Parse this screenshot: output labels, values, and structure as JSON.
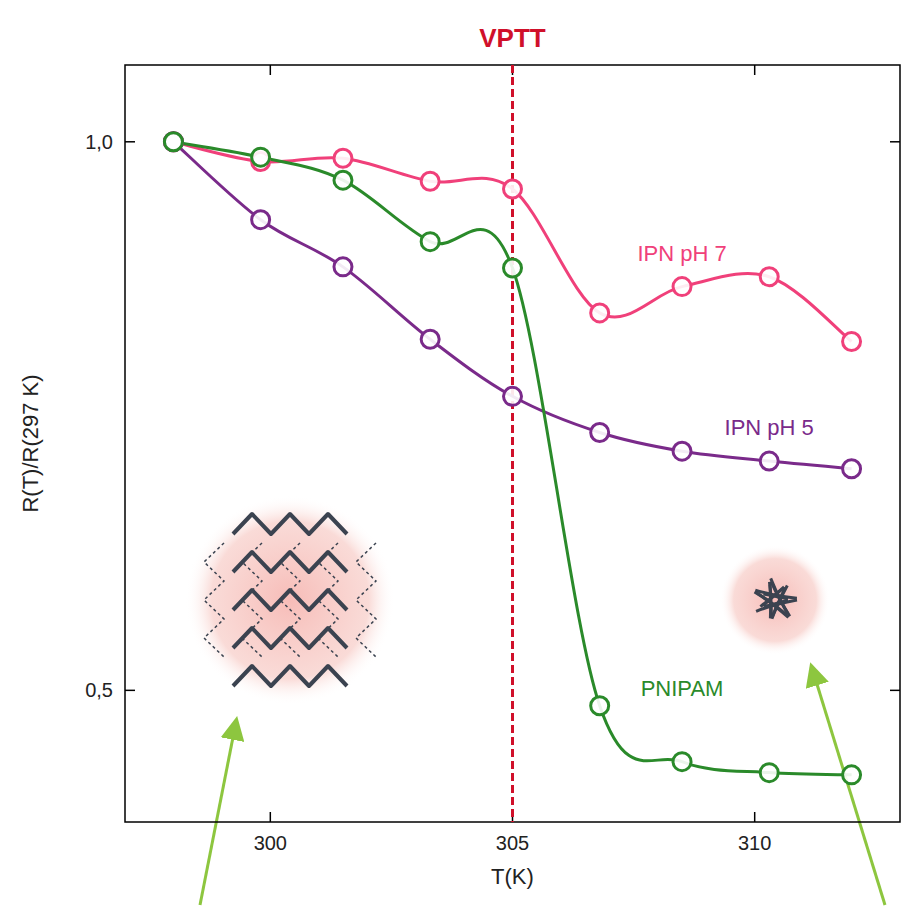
{
  "chart_data": {
    "type": "line",
    "x_label": "T(K)",
    "y_label": "R(T)/R(297 K)",
    "x": [
      298,
      299.8,
      301.5,
      303.3,
      305,
      306.8,
      308.5,
      310.3,
      312
    ],
    "series": [
      {
        "name": "IPN pH 7",
        "color": "#f0407a",
        "marker": "circle",
        "line_style": "solid",
        "values": [
          1.0,
          0.982,
          0.985,
          0.964,
          0.957,
          0.844,
          0.868,
          0.877,
          0.818
        ]
      },
      {
        "name": "IPN pH 5",
        "color": "#7a2a8a",
        "marker": "circle",
        "line_style": "solid",
        "values": [
          1.0,
          0.929,
          0.886,
          0.82,
          0.768,
          0.735,
          0.718,
          0.709,
          0.702
        ]
      },
      {
        "name": "PNIPAM",
        "color": "#2a8a2a",
        "marker": "circle",
        "line_style": "solid",
        "values": [
          1.0,
          0.986,
          0.965,
          0.909,
          0.885,
          0.486,
          0.435,
          0.425,
          0.423
        ]
      }
    ],
    "xlim": [
      297,
      313
    ],
    "ylim": [
      0.38,
      1.07
    ],
    "xticks": [
      300,
      305,
      310
    ],
    "yticks": [
      {
        "value": 0.5,
        "label": "0,5"
      },
      {
        "value": 1,
        "label": "1,0"
      }
    ],
    "grid": false,
    "annotations": [
      {
        "text": "VPTT",
        "x": 305,
        "color": "#d0102a",
        "line_style": "dashed"
      }
    ]
  }
}
